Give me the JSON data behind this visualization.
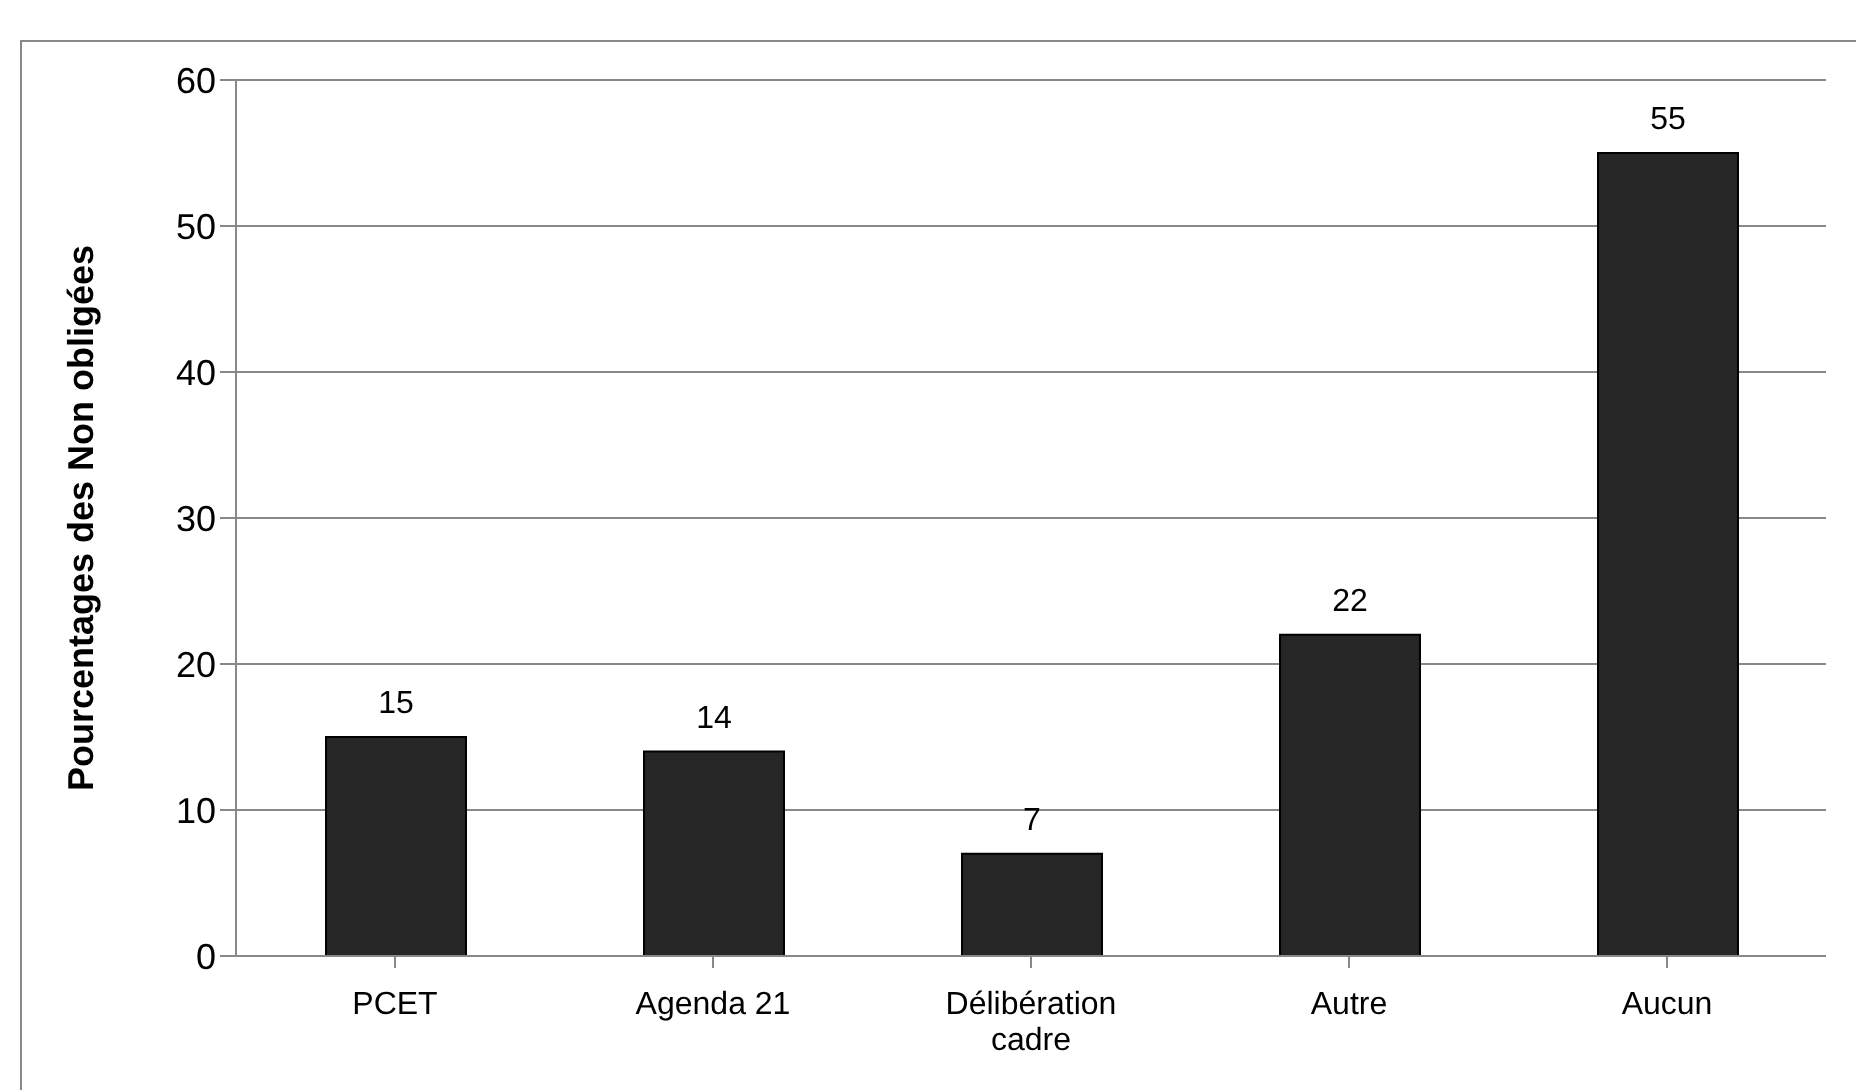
{
  "chart_data": {
    "type": "bar",
    "ylabel": "Pourcentages des Non obligées",
    "categories": [
      "PCET",
      "Agenda 21",
      "Délibération cadre",
      "Autre",
      "Aucun"
    ],
    "values": [
      15,
      14,
      7,
      22,
      55
    ],
    "color": "#262626",
    "ylim": [
      0,
      60
    ],
    "yticks": [
      0,
      10,
      20,
      30,
      40,
      50,
      60
    ],
    "grid": "y",
    "data_labels": true
  }
}
